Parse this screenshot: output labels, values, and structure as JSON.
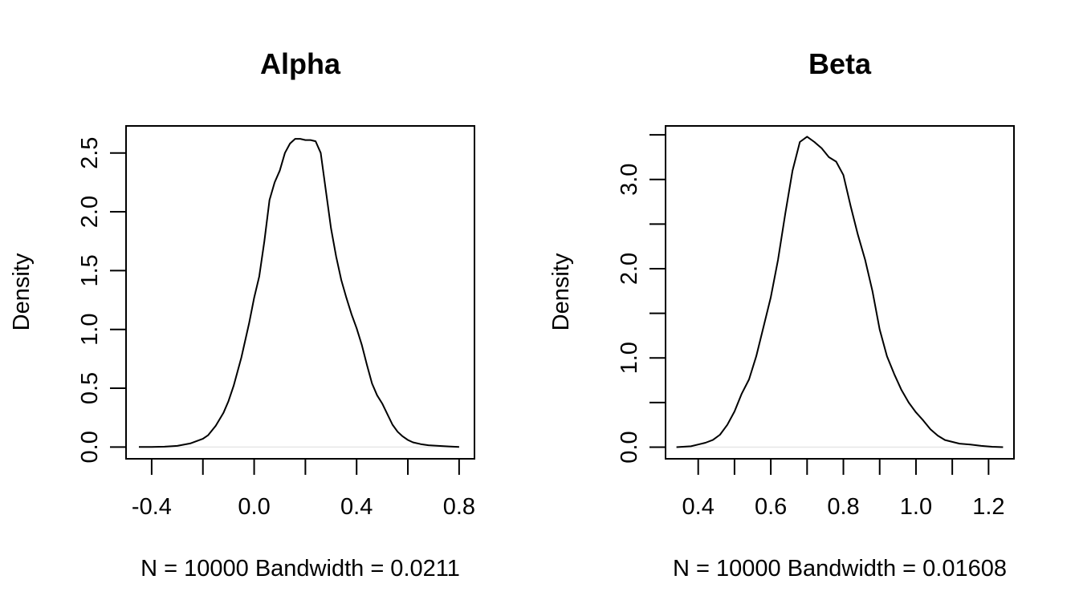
{
  "chart_data": [
    {
      "type": "line",
      "title": "Alpha",
      "xlabel": "N = 10000   Bandwidth = 0.0211",
      "ylabel": "Density",
      "xlim": [
        -0.5,
        0.86
      ],
      "ylim": [
        -0.1,
        2.73
      ],
      "xticks": [
        -0.4,
        -0.2,
        0.0,
        0.2,
        0.4,
        0.6,
        0.8
      ],
      "xtick_labels": [
        "-0.4",
        "",
        "0.0",
        "",
        "0.4",
        "",
        "0.8"
      ],
      "yticks": [
        0.0,
        0.5,
        1.0,
        1.5,
        2.0,
        2.5
      ],
      "ytick_labels": [
        "0.0",
        "0.5",
        "1.0",
        "1.5",
        "2.0",
        "2.5"
      ],
      "grid": false,
      "series": [
        {
          "x": [
            -0.45,
            -0.4,
            -0.35,
            -0.3,
            -0.25,
            -0.2,
            -0.18,
            -0.15,
            -0.12,
            -0.1,
            -0.08,
            -0.05,
            -0.02,
            0.0,
            0.02,
            0.04,
            0.06,
            0.08,
            0.1,
            0.12,
            0.14,
            0.16,
            0.18,
            0.2,
            0.22,
            0.24,
            0.26,
            0.28,
            0.3,
            0.32,
            0.34,
            0.36,
            0.38,
            0.4,
            0.42,
            0.44,
            0.46,
            0.48,
            0.5,
            0.52,
            0.54,
            0.56,
            0.58,
            0.6,
            0.62,
            0.65,
            0.68,
            0.72,
            0.76,
            0.8
          ],
          "y": [
            0.0,
            0.0,
            0.003,
            0.01,
            0.03,
            0.07,
            0.1,
            0.18,
            0.29,
            0.39,
            0.52,
            0.76,
            1.05,
            1.27,
            1.45,
            1.75,
            2.1,
            2.25,
            2.35,
            2.5,
            2.58,
            2.62,
            2.62,
            2.61,
            2.61,
            2.6,
            2.5,
            2.18,
            1.86,
            1.62,
            1.42,
            1.27,
            1.13,
            1.01,
            0.87,
            0.7,
            0.54,
            0.44,
            0.37,
            0.28,
            0.19,
            0.13,
            0.09,
            0.06,
            0.04,
            0.025,
            0.015,
            0.01,
            0.005,
            0.0
          ]
        }
      ]
    },
    {
      "type": "line",
      "title": "Beta",
      "xlabel": "N = 10000   Bandwidth = 0.01608",
      "ylabel": "Density",
      "xlim": [
        0.31,
        1.27
      ],
      "ylim": [
        -0.13,
        3.6
      ],
      "xticks": [
        0.4,
        0.5,
        0.6,
        0.7,
        0.8,
        0.9,
        1.0,
        1.1,
        1.2
      ],
      "xtick_labels": [
        "0.4",
        "",
        "0.6",
        "",
        "0.8",
        "",
        "1.0",
        "",
        "1.2"
      ],
      "yticks": [
        0.0,
        0.5,
        1.0,
        1.5,
        2.0,
        2.5,
        3.0,
        3.5
      ],
      "ytick_labels": [
        "0.0",
        "",
        "1.0",
        "",
        "2.0",
        "",
        "3.0",
        ""
      ],
      "grid": false,
      "series": [
        {
          "x": [
            0.34,
            0.38,
            0.4,
            0.42,
            0.44,
            0.46,
            0.48,
            0.5,
            0.52,
            0.54,
            0.56,
            0.58,
            0.6,
            0.62,
            0.64,
            0.66,
            0.68,
            0.7,
            0.72,
            0.74,
            0.76,
            0.78,
            0.8,
            0.82,
            0.84,
            0.86,
            0.88,
            0.9,
            0.92,
            0.94,
            0.96,
            0.98,
            1.0,
            1.02,
            1.04,
            1.06,
            1.08,
            1.1,
            1.12,
            1.15,
            1.18,
            1.21,
            1.24
          ],
          "y": [
            0.0,
            0.01,
            0.03,
            0.05,
            0.08,
            0.14,
            0.25,
            0.4,
            0.6,
            0.76,
            1.02,
            1.35,
            1.68,
            2.1,
            2.62,
            3.1,
            3.42,
            3.48,
            3.42,
            3.35,
            3.25,
            3.2,
            3.05,
            2.7,
            2.38,
            2.1,
            1.75,
            1.32,
            1.02,
            0.82,
            0.64,
            0.5,
            0.39,
            0.3,
            0.2,
            0.13,
            0.08,
            0.06,
            0.04,
            0.03,
            0.015,
            0.005,
            0.0
          ]
        }
      ]
    }
  ]
}
